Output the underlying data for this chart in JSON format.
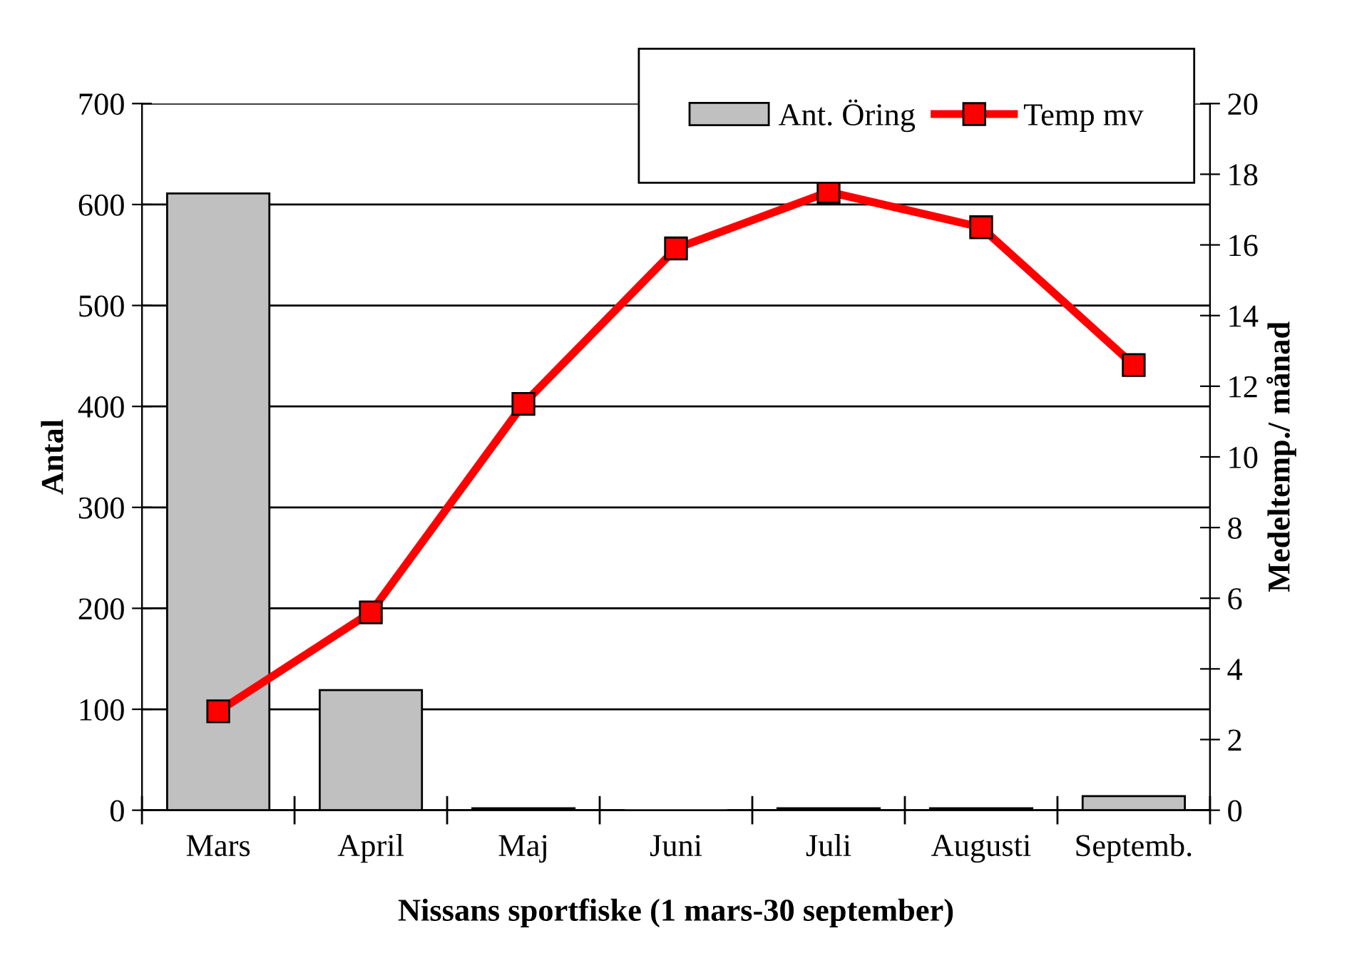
{
  "chart_data": {
    "type": "bar",
    "xlabel": "Nissans sportfiske (1 mars-30 september)",
    "ylabel": "Antal",
    "y2label": "Medeltemp./ månad",
    "categories": [
      "Mars",
      "April",
      "Maj",
      "Juni",
      "Juli",
      "Augusti",
      "Septemb."
    ],
    "series": [
      {
        "name": "Ant. Öring",
        "color": "#c0c0c0",
        "values": [
          611,
          119,
          2,
          0,
          2,
          2,
          14
        ]
      },
      {
        "name": "Temp mv",
        "type": "line",
        "axis": "y2",
        "color": "#ff0000",
        "marker": "square",
        "values": [
          2.8,
          5.6,
          11.5,
          15.9,
          17.5,
          16.5,
          12.6
        ]
      }
    ],
    "ylim": [
      0,
      700
    ],
    "yticks": [
      0,
      100,
      200,
      300,
      400,
      500,
      600,
      700
    ],
    "y2lim": [
      0,
      20
    ],
    "y2ticks": [
      0,
      2,
      4,
      6,
      8,
      10,
      12,
      14,
      16,
      18,
      20
    ],
    "grid": "y",
    "legend": "top right"
  }
}
